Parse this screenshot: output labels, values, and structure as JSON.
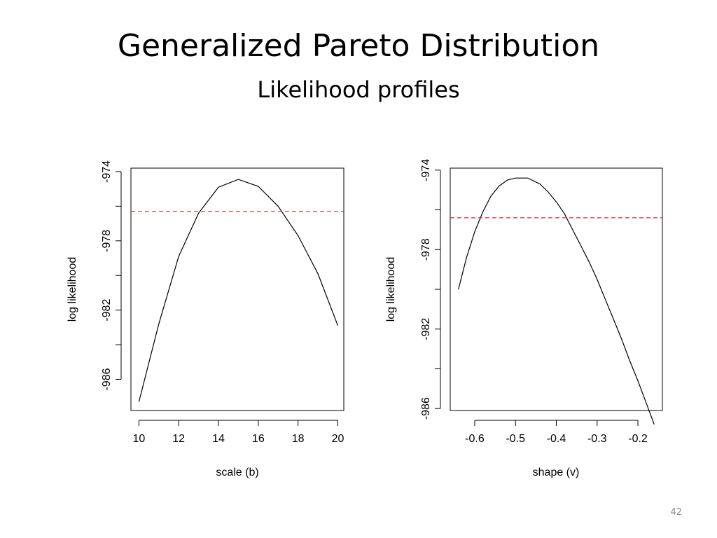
{
  "slide": {
    "title": "Generalized Pareto Distribution",
    "subtitle": "Likelihood profiles",
    "page_number": "42"
  },
  "chart_data": [
    {
      "type": "line",
      "title": "",
      "xlabel": "scale (b)",
      "ylabel": "log likelihood",
      "xlim": [
        9.6,
        20.3
      ],
      "ylim": [
        -987.8,
        -973.8
      ],
      "x_ticks": [
        10,
        12,
        14,
        16,
        18,
        20
      ],
      "x_tick_labels": [
        "10",
        "12",
        "14",
        "16",
        "18",
        "20"
      ],
      "y_ticks": [
        -974,
        -976,
        -978,
        -980,
        -982,
        -984,
        -986
      ],
      "y_tick_labels": [
        "-974",
        "",
        "-978",
        "",
        "-982",
        "",
        "-986"
      ],
      "series": [
        {
          "color": "#000000",
          "style": "solid",
          "x": [
            10,
            11,
            12,
            13,
            14,
            15,
            16,
            17,
            18,
            19,
            20
          ],
          "y": [
            -987.3,
            -982.8,
            -978.9,
            -976.4,
            -974.9,
            -974.45,
            -974.85,
            -976.0,
            -977.7,
            -979.9,
            -982.9
          ]
        },
        {
          "color": "#e8262b",
          "style": "dashed",
          "x": [
            9.6,
            20.3
          ],
          "y": [
            -976.3,
            -976.3
          ]
        }
      ],
      "grid": false,
      "legend": "none"
    },
    {
      "type": "line",
      "title": "",
      "xlabel": "shape (v)",
      "ylabel": "log likelihood",
      "xlim": [
        -0.66,
        -0.14
      ],
      "ylim": [
        -986.1,
        -973.9
      ],
      "x_ticks": [
        -0.6,
        -0.5,
        -0.4,
        -0.3,
        -0.2
      ],
      "x_tick_labels": [
        "-0.6",
        "-0.5",
        "-0.4",
        "-0.3",
        "-0.2"
      ],
      "y_ticks": [
        -974,
        -976,
        -978,
        -980,
        -982,
        -984,
        -986
      ],
      "y_tick_labels": [
        "-974",
        "",
        "-978",
        "",
        "-982",
        "",
        "-986"
      ],
      "series": [
        {
          "color": "#000000",
          "style": "solid",
          "x": [
            -0.64,
            -0.62,
            -0.6,
            -0.58,
            -0.56,
            -0.54,
            -0.52,
            -0.5,
            -0.48,
            -0.47,
            -0.46,
            -0.44,
            -0.42,
            -0.4,
            -0.38,
            -0.36,
            -0.34,
            -0.32,
            -0.3,
            -0.28,
            -0.26,
            -0.24,
            -0.22,
            -0.2,
            -0.18,
            -0.16
          ],
          "y": [
            -980.0,
            -978.4,
            -977.1,
            -976.1,
            -975.3,
            -974.8,
            -974.5,
            -974.4,
            -974.4,
            -974.4,
            -974.5,
            -974.7,
            -975.1,
            -975.6,
            -976.2,
            -977.0,
            -977.8,
            -978.6,
            -979.5,
            -980.5,
            -981.5,
            -982.5,
            -983.6,
            -984.6,
            -985.7,
            -986.8
          ]
        },
        {
          "color": "#e8262b",
          "style": "dashed",
          "x": [
            -0.66,
            -0.14
          ],
          "y": [
            -976.4,
            -976.4
          ]
        }
      ],
      "grid": false,
      "legend": "none"
    }
  ]
}
